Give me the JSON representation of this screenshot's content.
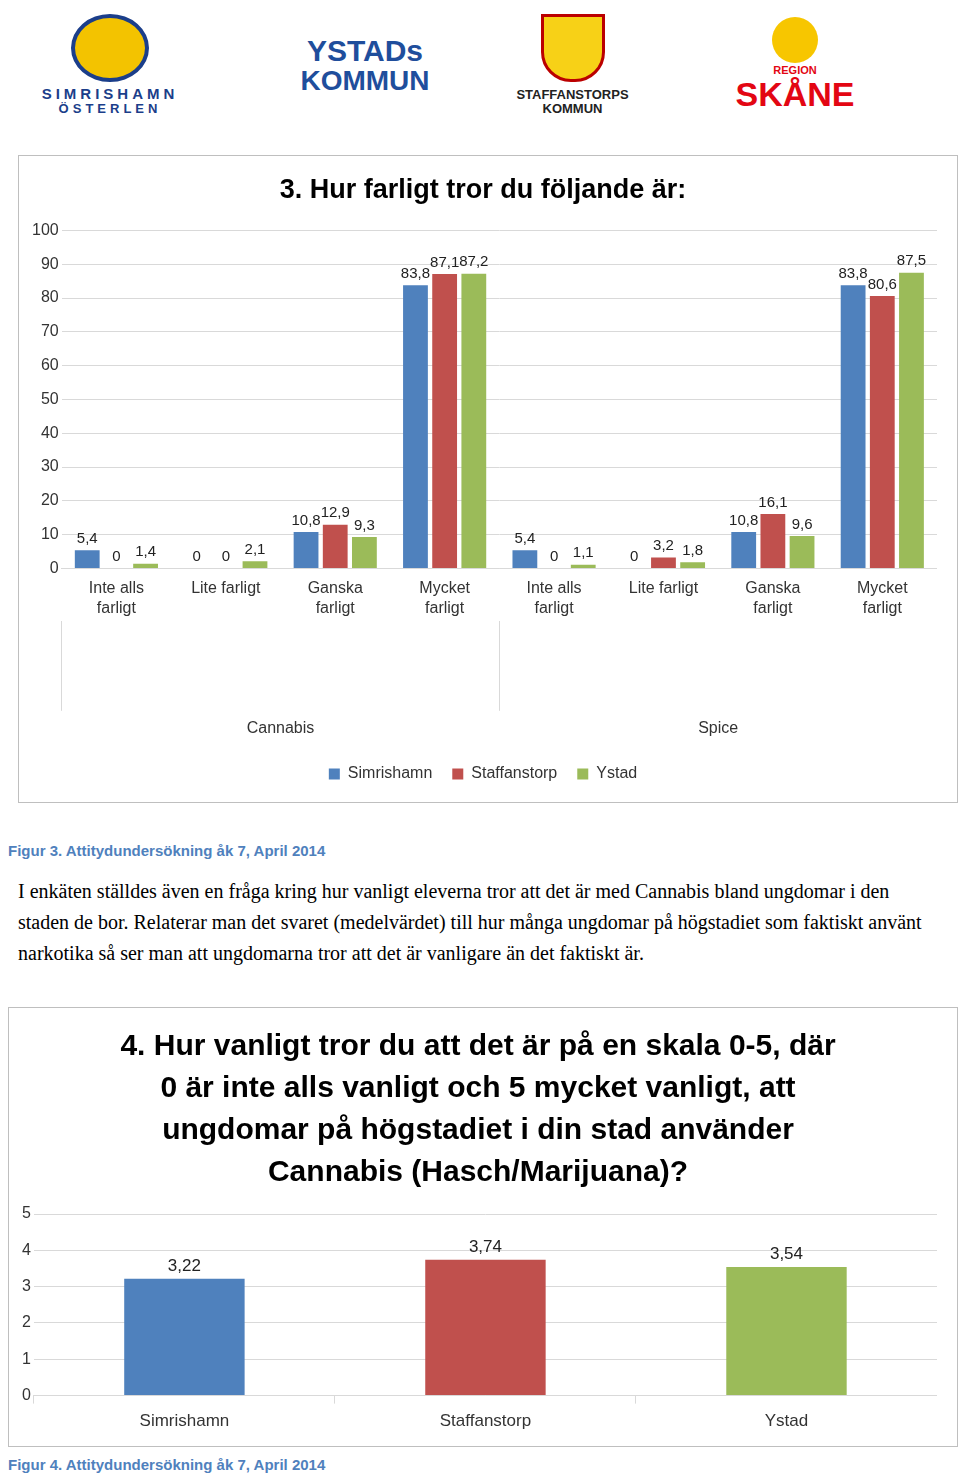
{
  "logos": [
    [
      "SIMRISHAMN",
      "ÖSTERLEN"
    ],
    [
      "YSTADs",
      "KOMMUN"
    ],
    [
      "STAFFANSTORPS",
      "KOMMUN"
    ],
    [
      "REGION",
      "SKÅNE"
    ]
  ],
  "chart_data": [
    {
      "type": "bar",
      "title": "3. Hur farligt tror du följande är:",
      "groups": [
        "Cannabis",
        "Spice"
      ],
      "categories": [
        [
          "Inte alls",
          "farligt"
        ],
        "Lite farligt",
        [
          "Ganska",
          "farligt"
        ],
        [
          "Mycket",
          "farligt"
        ],
        [
          "Inte alls",
          "farligt"
        ],
        "Lite farligt",
        [
          "Ganska",
          "farligt"
        ],
        [
          "Mycket",
          "farligt"
        ]
      ],
      "series": [
        {
          "name": "Simrishamn",
          "color": "#4f81bd",
          "values": [
            5.4,
            0,
            10.8,
            83.8,
            5.4,
            0,
            10.8,
            83.8
          ],
          "value_labels": [
            "5,4",
            "0",
            "10,8",
            "83,8",
            "5,4",
            "0",
            "10,8",
            "83,8"
          ]
        },
        {
          "name": "Staffanstorp",
          "color": "#c0504d",
          "values": [
            0,
            0,
            12.9,
            87.1,
            0,
            3.2,
            16.1,
            80.6
          ],
          "value_labels": [
            "0",
            "0",
            "12,9",
            "87,1",
            "0",
            "3,2",
            "16,1",
            "80,6"
          ]
        },
        {
          "name": "Ystad",
          "color": "#9bbb59",
          "values": [
            1.4,
            2.1,
            9.3,
            87.2,
            1.1,
            1.8,
            9.6,
            87.5
          ],
          "value_labels": [
            "1,4",
            "2,1",
            "9,3",
            "87,2",
            "1,1",
            "1,8",
            "9,6",
            "87,5"
          ]
        }
      ],
      "ylim": [
        0,
        100
      ],
      "yticks": [
        0,
        10,
        20,
        30,
        40,
        50,
        60,
        70,
        80,
        90,
        100
      ],
      "grid": true,
      "legend": "bottom",
      "data_labels": true
    },
    {
      "type": "bar",
      "title": [
        "4. Hur vanligt tror du att det är på en skala 0-5, där",
        "0 är inte alls vanligt och 5 mycket vanligt, att",
        "ungdomar på högstadiet i din stad använder",
        "Cannabis (Hasch/Marijuana)?"
      ],
      "categories": [
        "Simrishamn",
        "Staffanstorp",
        "Ystad"
      ],
      "values": [
        3.22,
        3.74,
        3.54
      ],
      "value_labels": [
        "3,22",
        "3,74",
        "3,54"
      ],
      "colors": [
        "#4f81bd",
        "#c0504d",
        "#9bbb59"
      ],
      "ylim": [
        0,
        5
      ],
      "yticks": [
        0,
        1,
        2,
        3,
        4,
        5
      ],
      "grid": true,
      "data_labels": true
    }
  ],
  "captions": [
    "Figur 3. Attitydundersökning åk 7, April 2014",
    "Figur 4. Attitydundersökning åk 7, April 2014"
  ],
  "paragraph": "I enkäten ställdes även en fråga kring hur vanligt eleverna tror att det är med Cannabis bland ungdomar i den staden de bor. Relaterar man det svaret (medelvärdet) till hur många ungdomar på högstadiet som faktiskt använt narkotika så ser man att ungdomarna tror att det är vanligare än det faktiskt är."
}
